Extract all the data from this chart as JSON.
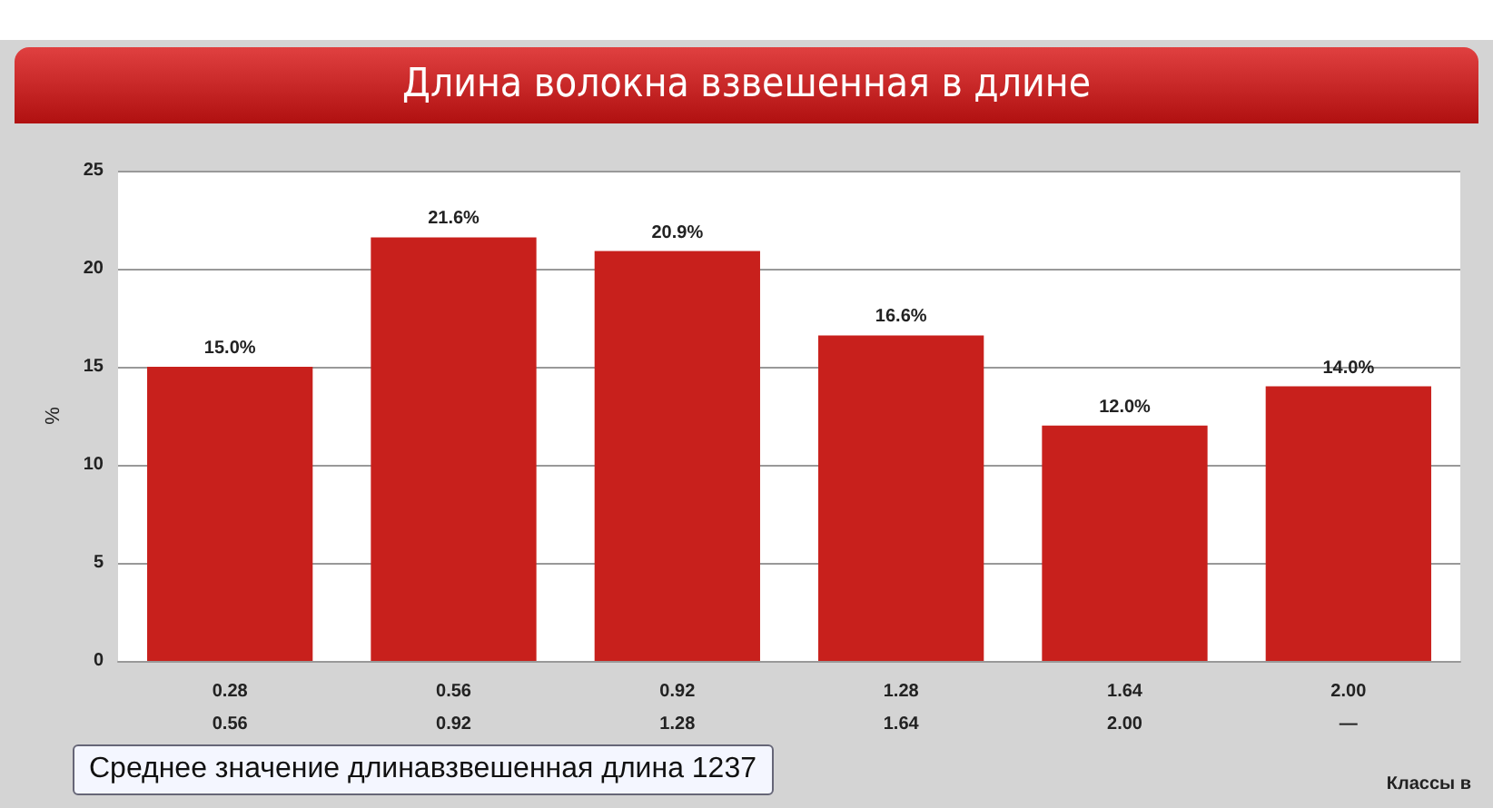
{
  "chart_data": {
    "type": "bar",
    "title": "Длина волокна взвешенная в длине",
    "ylabel": "%",
    "xlabel": "Классы в",
    "categories": [
      "0.28\n0.56",
      "0.56\n0.92",
      "0.92\n1.28",
      "1.28\n1.64",
      "1.64\n2.00",
      "2.00\n—"
    ],
    "values": [
      15.0,
      21.6,
      20.9,
      16.6,
      12.0,
      14.0
    ],
    "value_labels": [
      "15.0%",
      "21.6%",
      "20.9%",
      "16.6%",
      "12.0%",
      "14.0%"
    ],
    "color": "#c8201c",
    "ylim": [
      0,
      25
    ],
    "yticks": [
      0,
      5,
      10,
      15,
      20,
      25
    ],
    "grid": "y",
    "annotations": [
      "Среднее значение длинавзвешенная длина  1237"
    ]
  }
}
